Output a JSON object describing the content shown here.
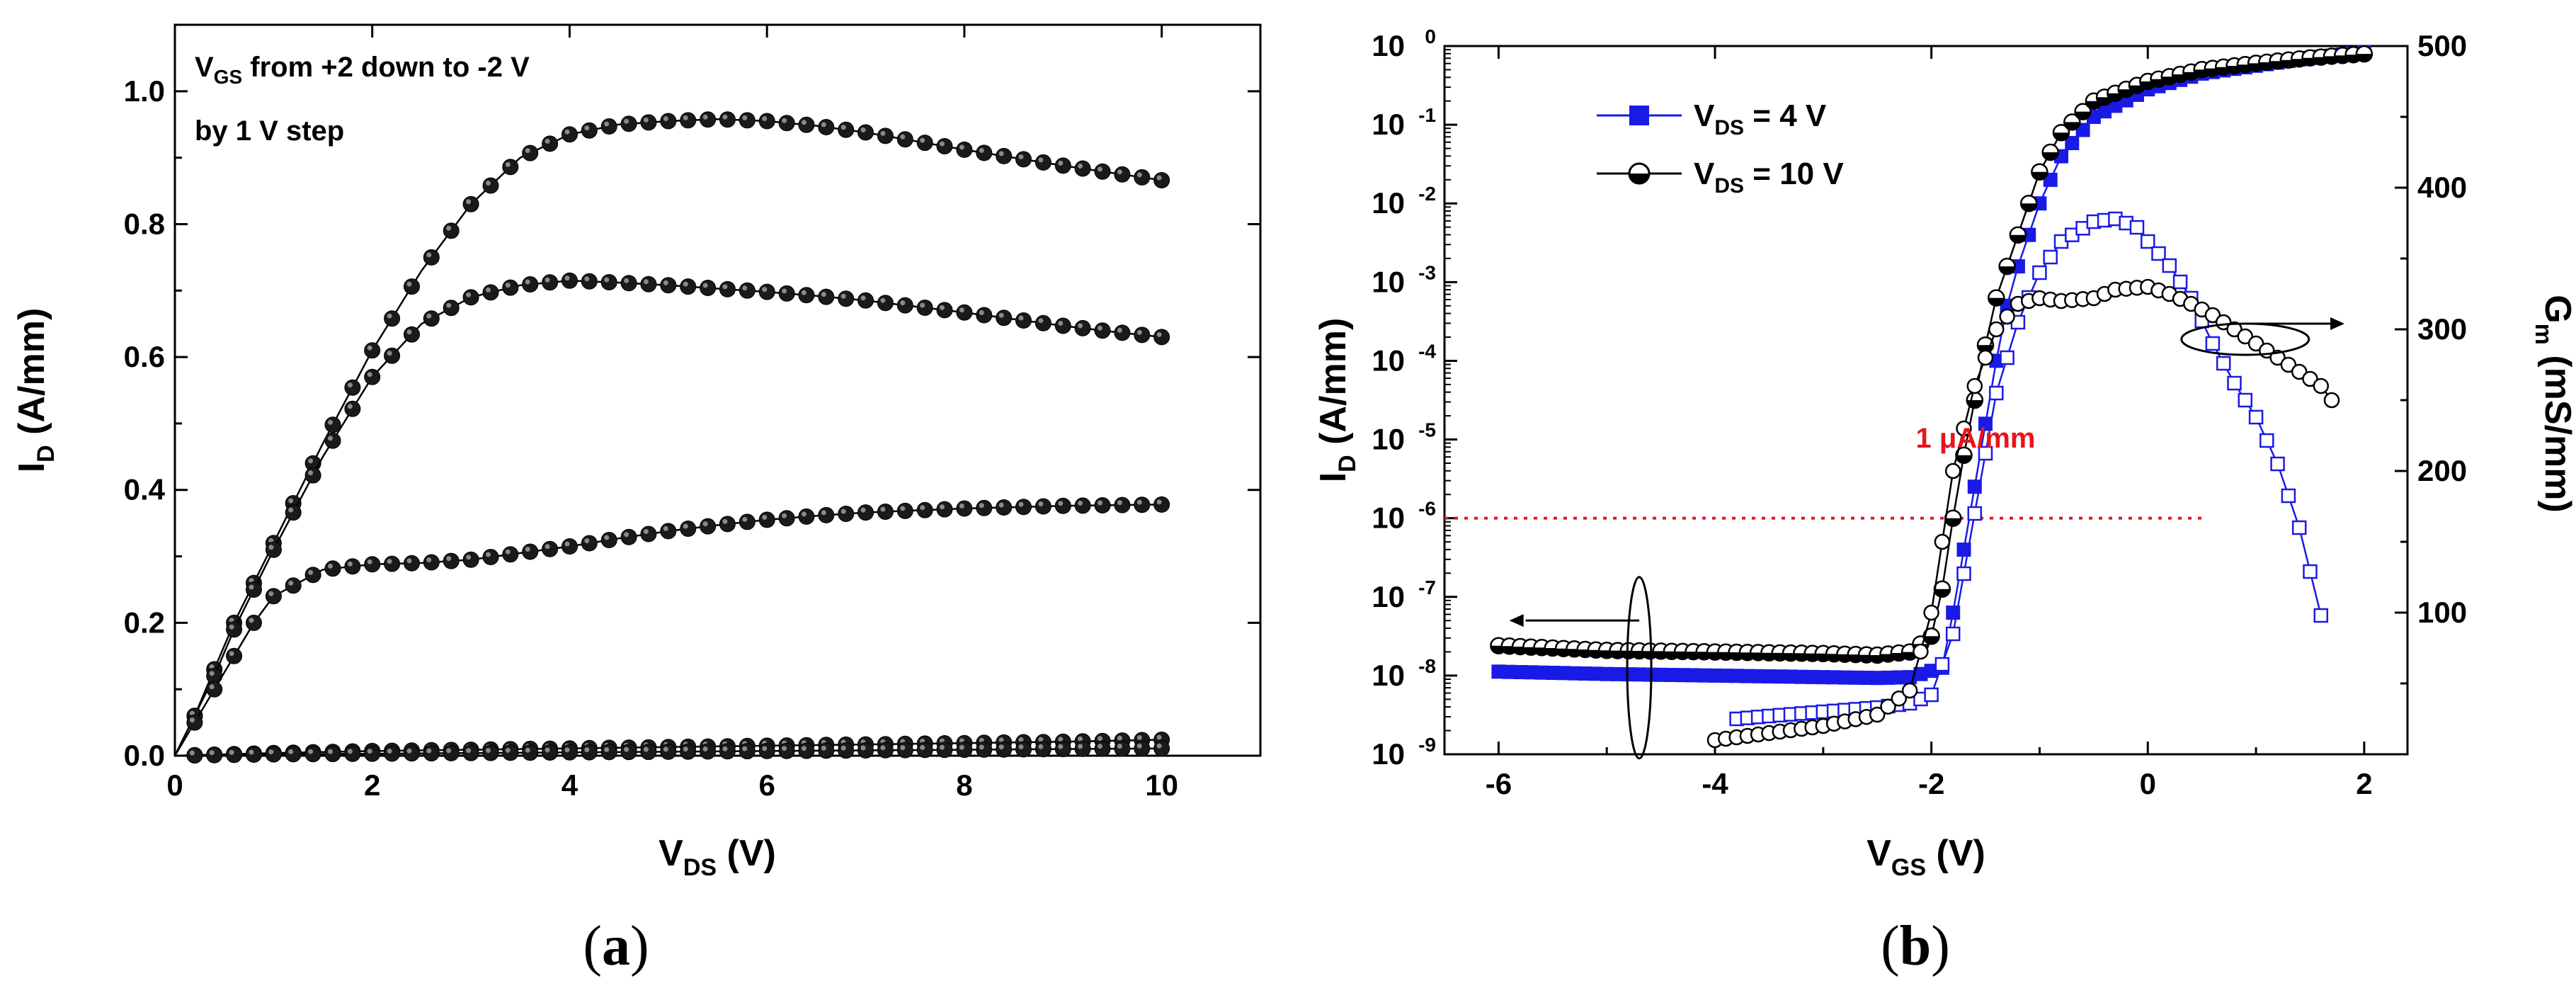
{
  "chart_data": [
    {
      "type": "line",
      "panel_label_open": "(",
      "panel_label_letter": "a",
      "panel_label_close": ")",
      "title": "",
      "annotation_line1_main": "V",
      "annotation_line1_sub": "GS",
      "annotation_line1_rest": " from +2 down to -2 V",
      "annotation_line2": "by 1 V step",
      "xlabel_main": "V",
      "xlabel_sub": "DS",
      "xlabel_unit": " (V)",
      "ylabel_main": "I",
      "ylabel_sub": "D",
      "ylabel_unit": " (A/mm)",
      "xlim": [
        0,
        11
      ],
      "ylim": [
        0,
        1.1
      ],
      "xticks": [
        0,
        2,
        4,
        6,
        8,
        10
      ],
      "yticks": [
        0.0,
        0.2,
        0.4,
        0.6,
        0.8,
        1.0
      ],
      "xtick_labels": [
        "0",
        "2",
        "4",
        "6",
        "8",
        "10"
      ],
      "ytick_labels": [
        "0.0",
        "0.2",
        "0.4",
        "0.6",
        "0.8",
        "1.0"
      ],
      "legend": "none",
      "series": [
        {
          "name": "VGS = +2 V",
          "x": [
            0,
            0.2,
            0.4,
            0.6,
            0.8,
            1.0,
            1.5,
            2.0,
            2.5,
            3.0,
            3.5,
            4.0,
            4.5,
            5.0,
            5.5,
            6.0,
            6.5,
            7.0,
            7.5,
            8.0,
            8.5,
            9.0,
            9.5,
            10.0
          ],
          "y": [
            0,
            0.06,
            0.13,
            0.2,
            0.26,
            0.32,
            0.47,
            0.61,
            0.73,
            0.83,
            0.9,
            0.935,
            0.95,
            0.955,
            0.958,
            0.955,
            0.948,
            0.938,
            0.925,
            0.912,
            0.9,
            0.888,
            0.877,
            0.866
          ]
        },
        {
          "name": "VGS = +1 V",
          "x": [
            0,
            0.2,
            0.4,
            0.6,
            0.8,
            1.0,
            1.5,
            2.0,
            2.5,
            3.0,
            3.5,
            4.0,
            4.5,
            5.0,
            5.5,
            6.0,
            6.5,
            7.0,
            7.5,
            8.0,
            8.5,
            9.0,
            9.5,
            10.0
          ],
          "y": [
            0,
            0.06,
            0.12,
            0.19,
            0.25,
            0.31,
            0.45,
            0.57,
            0.65,
            0.69,
            0.708,
            0.715,
            0.712,
            0.708,
            0.703,
            0.698,
            0.692,
            0.685,
            0.676,
            0.667,
            0.657,
            0.647,
            0.638,
            0.63
          ]
        },
        {
          "name": "VGS = 0 V",
          "x": [
            0,
            0.2,
            0.4,
            0.6,
            0.8,
            1.0,
            1.5,
            2.0,
            2.5,
            3.0,
            3.5,
            4.0,
            4.5,
            5.0,
            5.5,
            6.0,
            6.5,
            7.0,
            7.5,
            8.0,
            8.5,
            9.0,
            9.5,
            10.0
          ],
          "y": [
            0,
            0.05,
            0.1,
            0.15,
            0.2,
            0.24,
            0.28,
            0.288,
            0.29,
            0.295,
            0.305,
            0.315,
            0.327,
            0.338,
            0.347,
            0.355,
            0.361,
            0.366,
            0.369,
            0.372,
            0.374,
            0.376,
            0.377,
            0.378
          ]
        },
        {
          "name": "VGS = -1 V",
          "x": [
            0,
            1,
            2,
            3,
            4,
            5,
            6,
            7,
            8,
            9,
            10
          ],
          "y": [
            0,
            0.004,
            0.007,
            0.009,
            0.011,
            0.013,
            0.015,
            0.017,
            0.019,
            0.021,
            0.024
          ]
        },
        {
          "name": "VGS = -2 V",
          "x": [
            0,
            1,
            2,
            3,
            4,
            5,
            6,
            7,
            8,
            9,
            10
          ],
          "y": [
            0,
            0.002,
            0.003,
            0.004,
            0.005,
            0.006,
            0.007,
            0.008,
            0.009,
            0.01,
            0.011
          ]
        }
      ]
    },
    {
      "type": "line",
      "panel_label_open": "(",
      "panel_label_letter": "b",
      "panel_label_close": ")",
      "title": "",
      "xlabel_main": "V",
      "xlabel_sub": "GS",
      "xlabel_unit": " (V)",
      "ylabel_main": "I",
      "ylabel_sub": "D",
      "ylabel_unit": " (A/mm)",
      "y2label_main": "G",
      "y2label_sub": "m",
      "y2label_unit": " (mS/mm)",
      "xlim": [
        -6.5,
        2.4
      ],
      "ylim_log10": [
        -9,
        0
      ],
      "y2lim": [
        0,
        500
      ],
      "xticks": [
        -6,
        -4,
        -2,
        0,
        2
      ],
      "xtick_labels": [
        "-6",
        "-4",
        "-2",
        "0",
        "2"
      ],
      "yticks_log10": [
        -9,
        -8,
        -7,
        -6,
        -5,
        -4,
        -3,
        -2,
        -1,
        0
      ],
      "ytick_exponents": [
        "-9",
        "-8",
        "-7",
        "-6",
        "-5",
        "-4",
        "-3",
        "-2",
        "-1",
        "0"
      ],
      "ytick_base": "10",
      "y2ticks": [
        100,
        200,
        300,
        400,
        500
      ],
      "y2tick_labels": [
        "100",
        "200",
        "300",
        "400",
        "500"
      ],
      "threshold_log10": -6,
      "threshold_label": "1 μA/mm",
      "threshold_end_x": 0.5,
      "legend": "top-left",
      "legend_entries": [
        {
          "main": "V",
          "sub": "DS",
          "rest": " = 4 V",
          "color": "#1a1ae6"
        },
        {
          "main": "V",
          "sub": "DS",
          "rest": " = 10 V",
          "color": "#000000"
        }
      ],
      "series": [
        {
          "name": "ID VDS = 4 V",
          "axis": "left",
          "scale": "log",
          "color": "#1a1ae6",
          "x": [
            -6.0,
            -5.0,
            -4.0,
            -3.0,
            -2.5,
            -2.2,
            -1.9,
            -1.8,
            -1.7,
            -1.6,
            -1.5,
            -1.4,
            -1.3,
            -1.2,
            -1.0,
            -0.8,
            -0.5,
            0.0,
            0.5,
            1.0,
            1.5,
            2.0
          ],
          "y_log10": [
            -7.95,
            -7.98,
            -8.0,
            -8.02,
            -8.03,
            -8.02,
            -7.9,
            -7.2,
            -6.4,
            -5.6,
            -4.8,
            -4.0,
            -3.3,
            -2.8,
            -2.0,
            -1.4,
            -0.9,
            -0.55,
            -0.35,
            -0.25,
            -0.15,
            -0.08
          ]
        },
        {
          "name": "ID VDS = 10 V",
          "axis": "left",
          "scale": "log",
          "color": "#000000",
          "x": [
            -6.0,
            -5.0,
            -4.0,
            -3.0,
            -2.5,
            -2.2,
            -2.0,
            -1.9,
            -1.8,
            -1.7,
            -1.6,
            -1.5,
            -1.4,
            -1.2,
            -1.0,
            -0.8,
            -0.5,
            0.0,
            0.5,
            1.0,
            1.5,
            2.0
          ],
          "y_log10": [
            -7.62,
            -7.68,
            -7.7,
            -7.72,
            -7.74,
            -7.7,
            -7.5,
            -6.9,
            -6.0,
            -5.2,
            -4.5,
            -3.8,
            -3.2,
            -2.4,
            -1.6,
            -1.1,
            -0.7,
            -0.45,
            -0.3,
            -0.22,
            -0.15,
            -0.1
          ]
        },
        {
          "name": "Gm VDS = 4 V",
          "axis": "right",
          "scale": "linear",
          "color": "#1a1ae6",
          "x": [
            -3.8,
            -3.5,
            -3.0,
            -2.5,
            -2.2,
            -2.0,
            -1.8,
            -1.6,
            -1.4,
            -1.2,
            -1.0,
            -0.8,
            -0.5,
            -0.3,
            -0.1,
            0.0,
            0.2,
            0.4,
            0.6,
            0.8,
            1.0,
            1.2,
            1.4,
            1.6
          ],
          "y": [
            25,
            27,
            30,
            33,
            36,
            42,
            85,
            170,
            255,
            305,
            340,
            362,
            376,
            378,
            372,
            362,
            345,
            322,
            290,
            262,
            238,
            205,
            160,
            98
          ]
        },
        {
          "name": "Gm VDS = 10 V",
          "axis": "right",
          "scale": "linear",
          "color": "#000000",
          "x": [
            -4.0,
            -3.5,
            -3.0,
            -2.5,
            -2.2,
            -2.0,
            -1.9,
            -1.8,
            -1.6,
            -1.4,
            -1.2,
            -1.0,
            -0.8,
            -0.5,
            -0.3,
            0.0,
            0.2,
            0.4,
            0.6,
            0.8,
            1.0,
            1.2,
            1.4,
            1.6,
            1.7
          ],
          "y": [
            10,
            15,
            20,
            28,
            45,
            100,
            150,
            200,
            260,
            300,
            318,
            322,
            320,
            322,
            328,
            330,
            325,
            318,
            310,
            300,
            290,
            280,
            270,
            260,
            250
          ]
        }
      ]
    }
  ]
}
